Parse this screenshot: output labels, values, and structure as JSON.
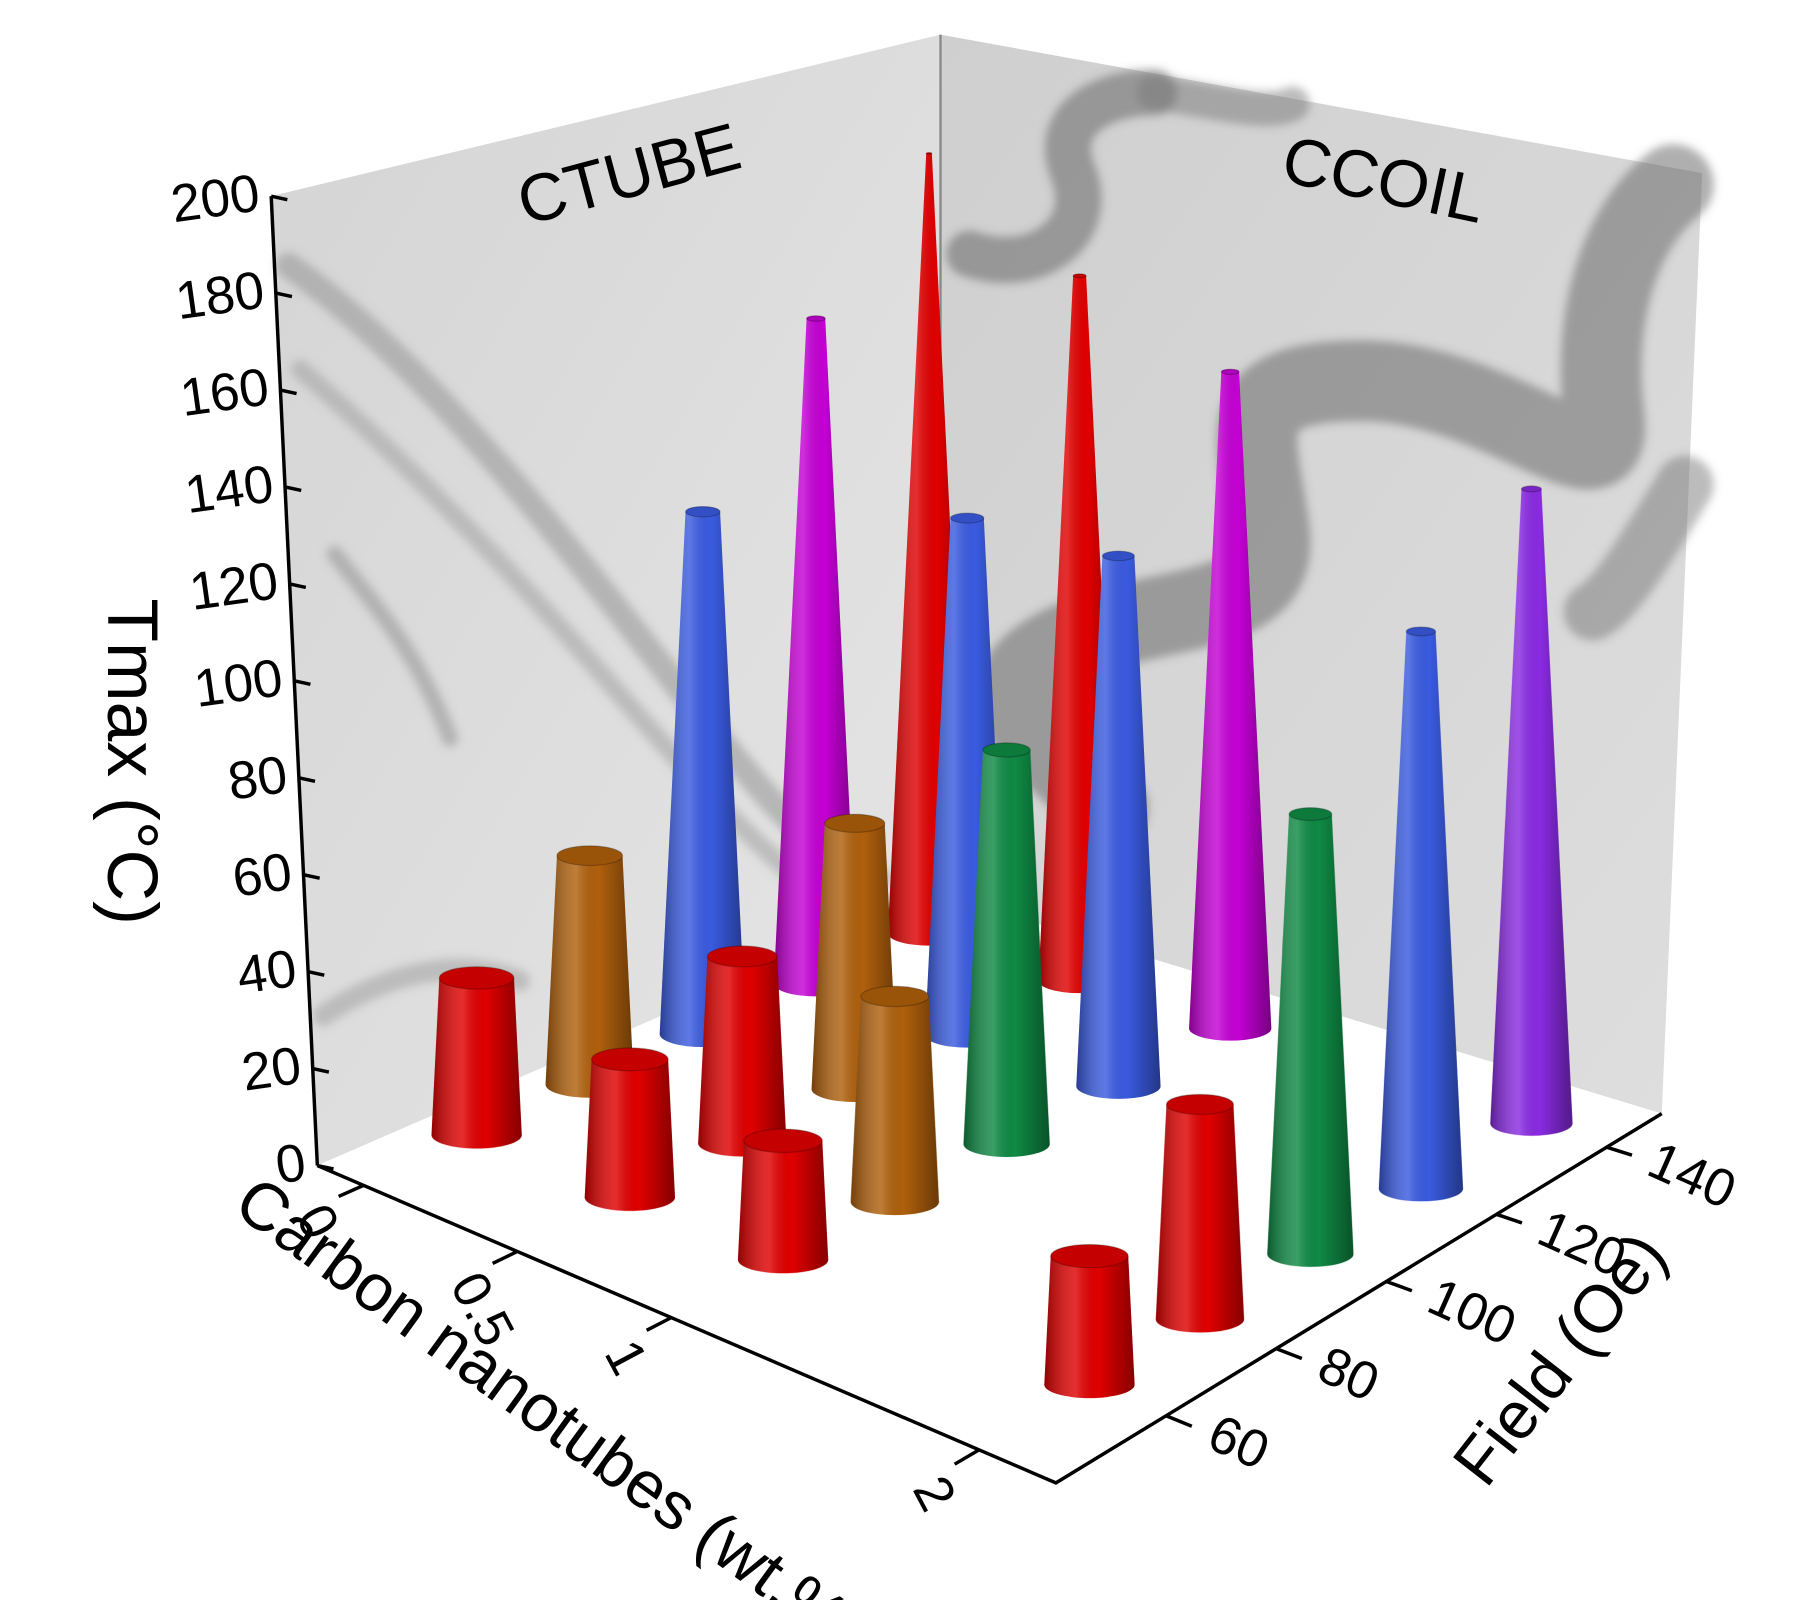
{
  "chart_data": {
    "type": "bar3d",
    "annotations": [
      "CTUBE",
      "CCOIL"
    ],
    "x_label": "Carbon nanotubes (wt.%)",
    "y_label": "Field (Oe)",
    "z_label": "Tmax (°C)",
    "x": [
      0,
      0.5,
      1,
      2
    ],
    "y": [
      60,
      80,
      100,
      120,
      140
    ],
    "xlim": [
      -0.15,
      2.25
    ],
    "ylim": [
      40,
      150
    ],
    "zlim": [
      0,
      200
    ],
    "xticks": [
      0,
      0.5,
      1,
      2
    ],
    "yticks": [
      60,
      80,
      100,
      120,
      140
    ],
    "zticks": [
      0,
      20,
      40,
      60,
      80,
      100,
      120,
      140,
      160,
      180,
      200
    ],
    "values": [
      [
        33,
        49,
        114,
        148,
        177
      ],
      [
        29,
        40,
        58,
        115,
        160
      ],
      [
        25,
        44,
        86,
        118,
        149
      ],
      [
        27,
        46,
        96,
        124,
        144
      ]
    ],
    "colors": [
      [
        "#e00000",
        "#b0600c",
        "#3a5be0",
        "#c400d4",
        "#e00000"
      ],
      [
        "#e00000",
        "#e00000",
        "#b0600c",
        "#3a5be0",
        "#e00000"
      ],
      [
        "#e00000",
        "#b0600c",
        "#0f8a44",
        "#3a5be0",
        "#c400d4"
      ],
      [
        "#e00000",
        "#e00000",
        "#0f8a44",
        "#3a5be0",
        "#8a2be2"
      ]
    ]
  }
}
